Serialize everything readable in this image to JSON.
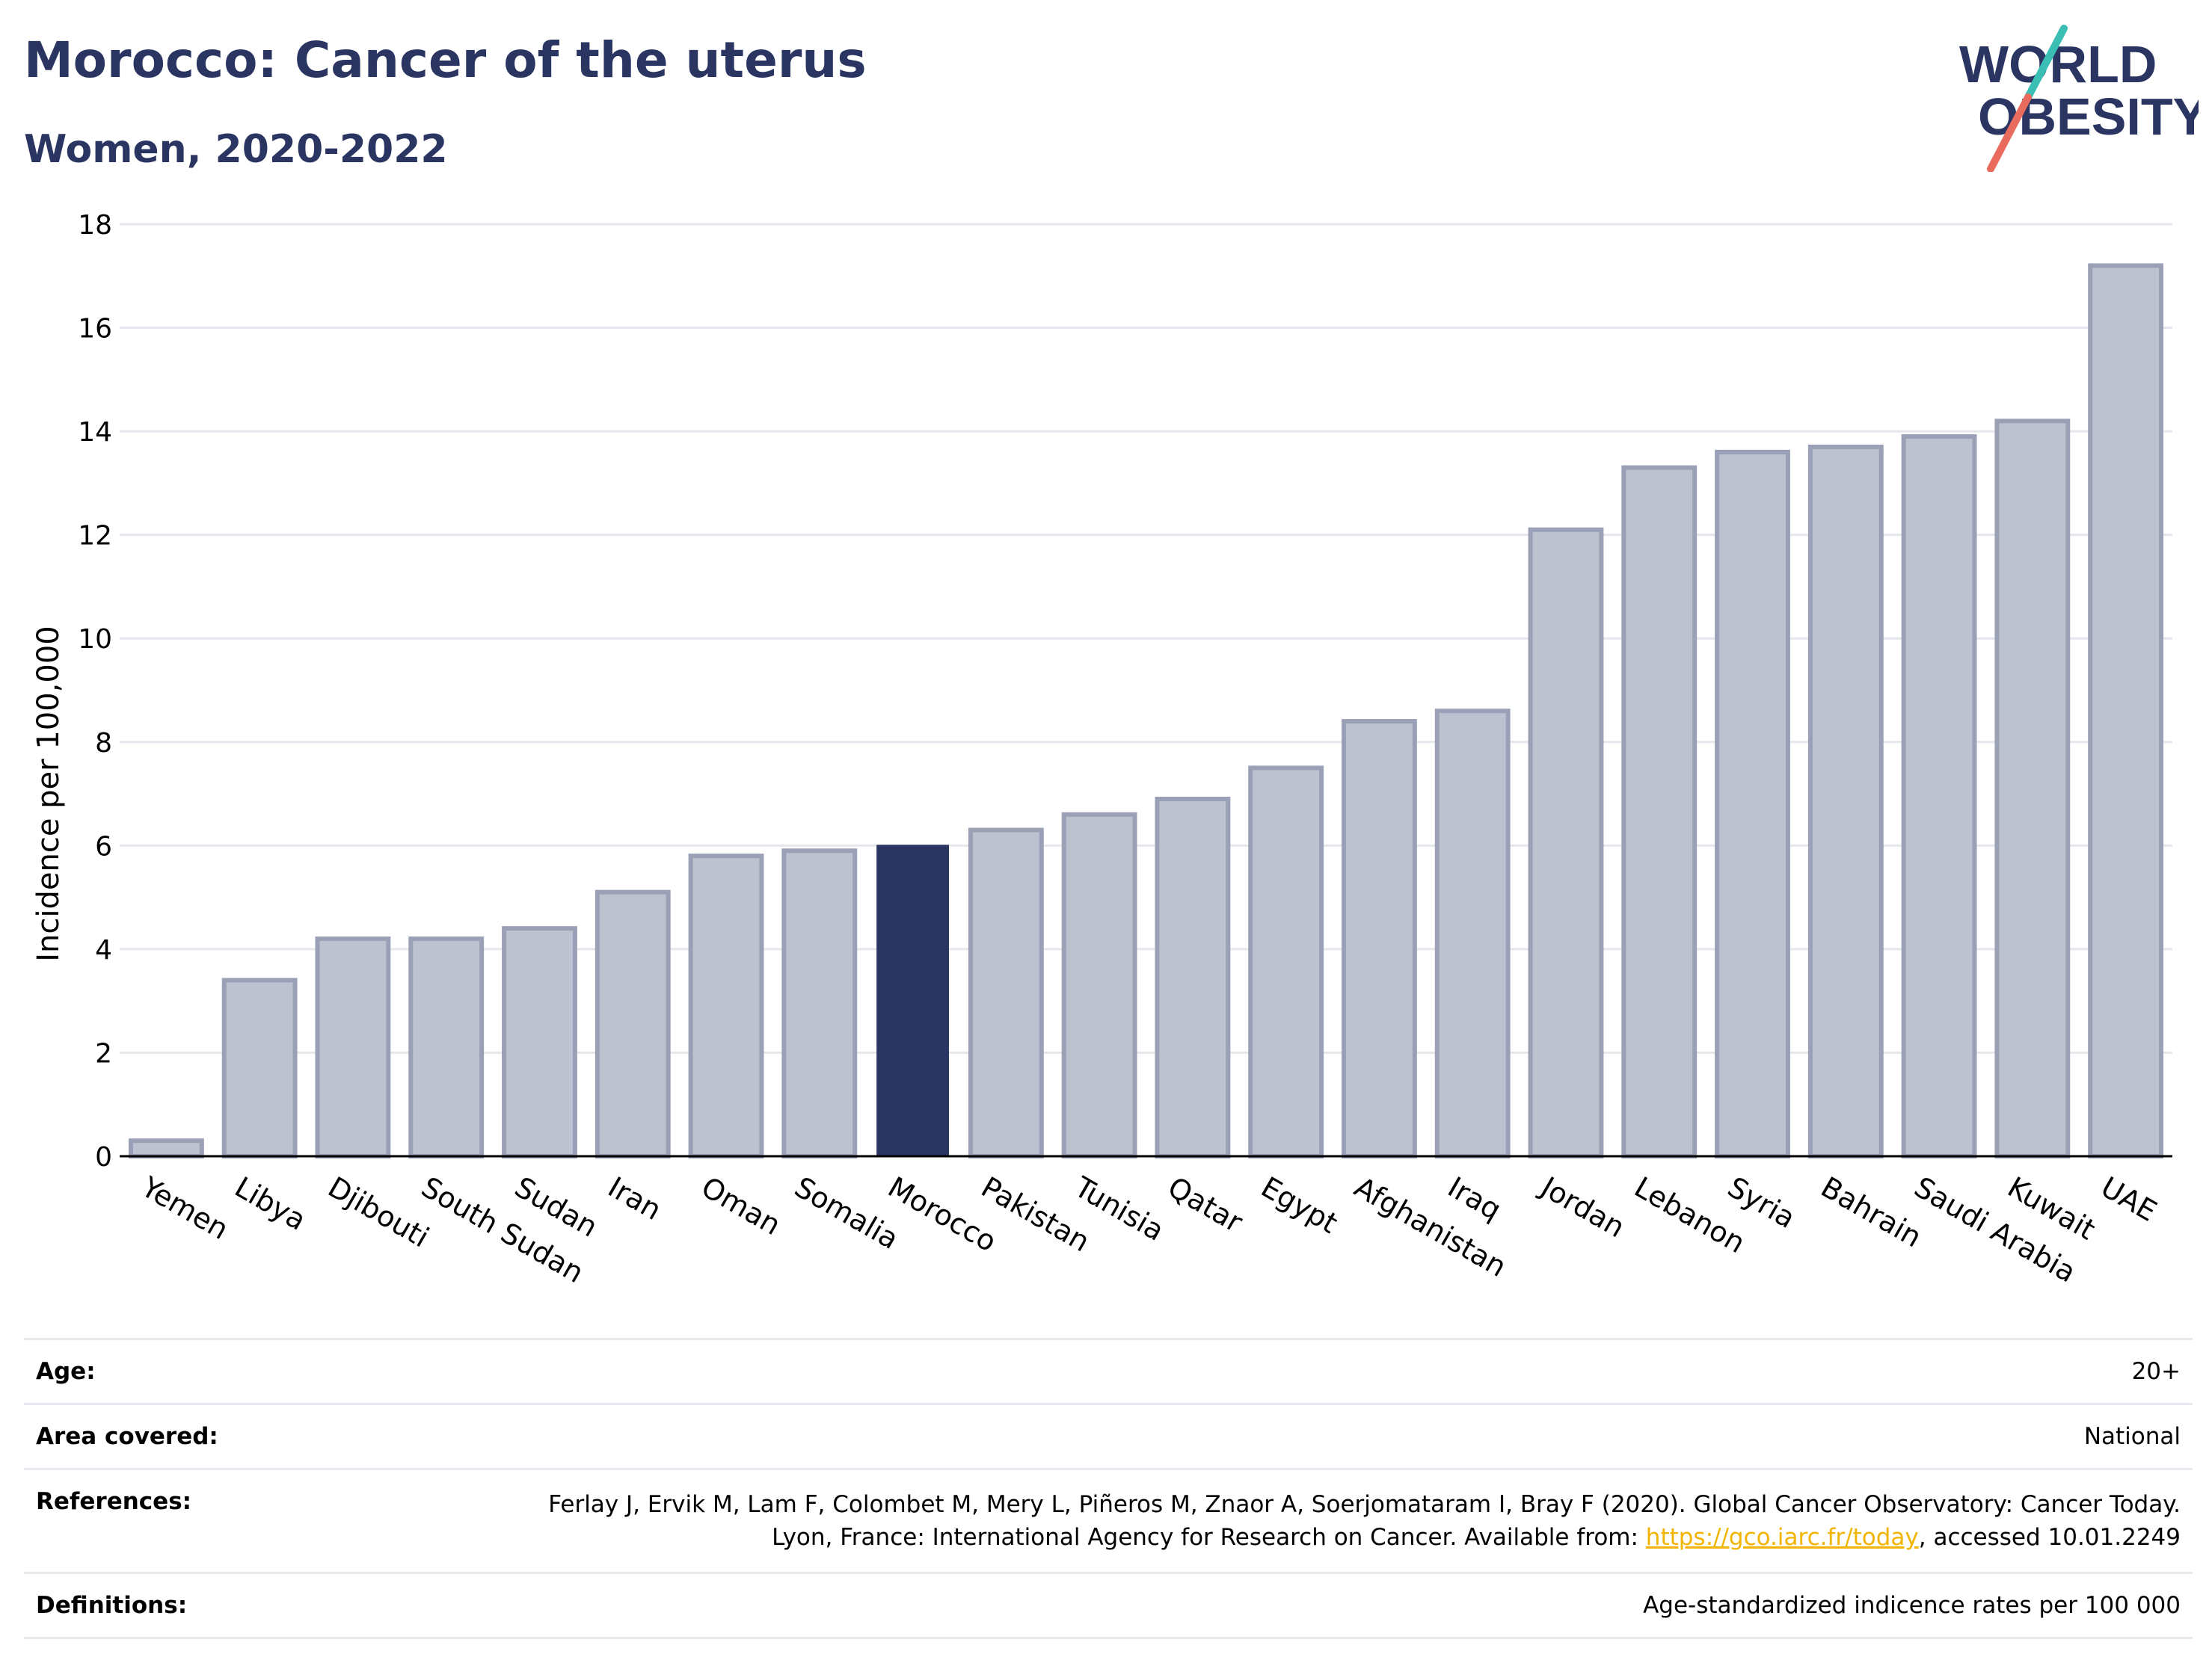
{
  "header": {
    "title": "Morocco: Cancer of the uterus",
    "subtitle": "Women, 2020-2022"
  },
  "logo": {
    "line1": "WORLD",
    "line2": "OBESITY",
    "slash_colors": [
      "#3bbfb5",
      "#e96b5d"
    ]
  },
  "colors": {
    "highlight": "#2a3561",
    "bar": "#bec2d0",
    "bar_stroke": "#9aa0b6",
    "title": "#2a3561"
  },
  "chart_data": {
    "type": "bar",
    "categories": [
      "Yemen",
      "Libya",
      "Djibouti",
      "South Sudan",
      "Sudan",
      "Iran",
      "Oman",
      "Somalia",
      "Morocco",
      "Pakistan",
      "Tunisia",
      "Qatar",
      "Egypt",
      "Afghanistan",
      "Iraq",
      "Jordan",
      "Lebanon",
      "Syria",
      "Bahrain",
      "Saudi Arabia",
      "Kuwait",
      "UAE"
    ],
    "values": [
      0.3,
      3.4,
      4.2,
      4.2,
      4.4,
      5.1,
      5.8,
      5.9,
      6.0,
      6.3,
      6.6,
      6.9,
      7.5,
      8.4,
      8.6,
      12.1,
      13.3,
      13.6,
      13.7,
      13.9,
      14.2,
      17.2
    ],
    "highlight": "Morocco",
    "ylabel": "Incidence per 100,000",
    "ylim": [
      0,
      18
    ],
    "yticks": [
      0,
      2,
      4,
      6,
      8,
      10,
      12,
      14,
      16,
      18
    ],
    "grid": true
  },
  "meta": {
    "age_label": "Age:",
    "age_value": "20+",
    "area_label": "Area covered:",
    "area_value": "National",
    "ref_label": "References:",
    "ref_text_before": "Ferlay J, Ervik M, Lam F, Colombet M, Mery L, Piñeros M, Znaor A, Soerjomataram I, Bray F (2020). Global Cancer Observatory: Cancer Today. Lyon, France: International Agency for Research on Cancer. Available from: ",
    "ref_link": "https://gco.iarc.fr/today",
    "ref_text_after": ", accessed 10.01.2249",
    "def_label": "Definitions:",
    "def_value": "Age-standardized indicence rates per 100 000"
  }
}
